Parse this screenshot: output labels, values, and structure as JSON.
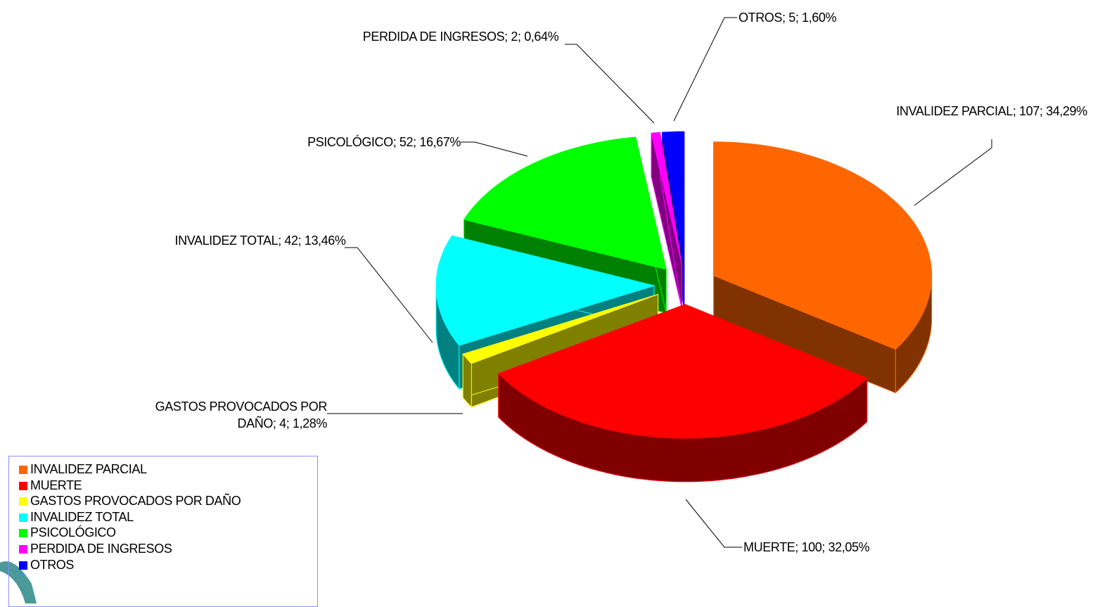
{
  "chart_data": {
    "type": "pie3d",
    "categories": [
      "INVALIDEZ PARCIAL",
      "MUERTE",
      "GASTOS PROVOCADOS POR DAÑO",
      "INVALIDEZ TOTAL",
      "PSICOLÓGICO",
      "PERDIDA DE INGRESOS",
      "OTROS"
    ],
    "values": [
      107,
      100,
      4,
      42,
      52,
      2,
      5
    ],
    "value_labels": [
      "INVALIDEZ PARCIAL; 107; 34,29%",
      "MUERTE; 100; 32,05%",
      "GASTOS PROVOCADOS POR DAÑO; 4; 1,28%",
      "INVALIDEZ TOTAL; 42; 13,46%",
      "PSICOLÓGICO; 52; 16,67%",
      "PERDIDA DE INGRESOS; 2; 0,64%",
      "OTROS; 5; 1,60%"
    ],
    "colors": [
      "#ff6600",
      "#ff0000",
      "#ffff00",
      "#00ffff",
      "#00ff00",
      "#ff00ff",
      "#0000ff"
    ],
    "legend": "bottom-left"
  }
}
